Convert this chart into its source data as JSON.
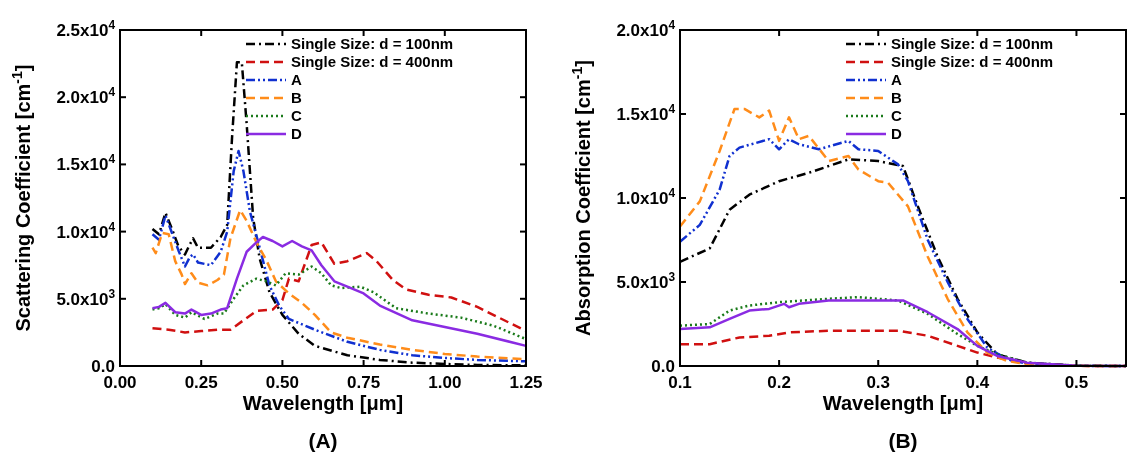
{
  "chart_data": [
    {
      "type": "line",
      "title": "(A)",
      "xlabel": "Wavelength [μm]",
      "ylabel": "Scattering Coefficient [cm$^{-1}$]",
      "legend": "top right",
      "xlim": [
        0,
        1.25
      ],
      "xticks": [
        {
          "value": 0,
          "label": "0.00"
        },
        {
          "value": 0.25,
          "label": "0.25"
        },
        {
          "value": 0.5,
          "label": "0.50"
        },
        {
          "value": 0.75,
          "label": "0.75"
        },
        {
          "value": 1,
          "label": "1.00"
        },
        {
          "value": 1.25,
          "label": "1.25"
        }
      ],
      "ylim": [
        0,
        25000
      ],
      "yticks": [
        {
          "value": 0,
          "label": "0.0"
        },
        {
          "value": 5000,
          "label": "5.0x10$^{3}$"
        },
        {
          "value": 10000,
          "label": "1.0x10$^{4}$"
        },
        {
          "value": 15000,
          "label": "1.5x10$^{4}$"
        },
        {
          "value": 20000,
          "label": "2.0x10$^{4}$"
        },
        {
          "value": 25000,
          "label": "2.5x10$^{4}$"
        }
      ],
      "series": [
        {
          "name": "Single Size: d = 100nm",
          "color": "#000000",
          "line_style": "dashdot",
          "x": [
            0.1,
            0.12,
            0.14,
            0.16,
            0.18,
            0.2,
            0.21,
            0.225,
            0.24,
            0.28,
            0.31,
            0.33,
            0.345,
            0.36,
            0.375,
            0.39,
            0.41,
            0.43,
            0.46,
            0.5,
            0.55,
            0.6,
            0.7,
            0.8,
            0.9,
            1.0,
            1.1,
            1.25
          ],
          "values": [
            10200,
            9800,
            11400,
            10200,
            8900,
            8300,
            8800,
            9500,
            8800,
            8800,
            9600,
            10500,
            17000,
            22600,
            22600,
            18000,
            11000,
            8000,
            5500,
            3800,
            2400,
            1500,
            800,
            450,
            250,
            150,
            80,
            50
          ]
        },
        {
          "name": "Single Size: d = 400nm",
          "color": "#d01010",
          "line_style": "dashed",
          "x": [
            0.1,
            0.15,
            0.2,
            0.25,
            0.3,
            0.34,
            0.38,
            0.42,
            0.47,
            0.5,
            0.52,
            0.55,
            0.59,
            0.62,
            0.66,
            0.7,
            0.76,
            0.79,
            0.84,
            0.88,
            0.95,
            1.02,
            1.1,
            1.25
          ],
          "values": [
            2800,
            2700,
            2500,
            2600,
            2700,
            2700,
            3400,
            4100,
            4200,
            4900,
            6500,
            6300,
            9000,
            9200,
            7600,
            7800,
            8400,
            7800,
            6400,
            5700,
            5300,
            5100,
            4400,
            2600
          ]
        },
        {
          "name": "A",
          "color": "#1030d0",
          "line_style": "dashdotdot",
          "x": [
            0.1,
            0.12,
            0.14,
            0.16,
            0.18,
            0.2,
            0.215,
            0.225,
            0.24,
            0.28,
            0.31,
            0.33,
            0.35,
            0.365,
            0.38,
            0.4,
            0.43,
            0.46,
            0.49,
            0.52,
            0.55,
            0.6,
            0.7,
            0.8,
            0.9,
            1.0,
            1.1,
            1.25
          ],
          "values": [
            9800,
            9400,
            11200,
            9900,
            8600,
            7400,
            8100,
            8300,
            7700,
            7500,
            8500,
            10000,
            14500,
            16000,
            14500,
            11500,
            8800,
            6000,
            4500,
            3500,
            3200,
            2700,
            1800,
            1200,
            800,
            600,
            450,
            350
          ]
        },
        {
          "name": "B",
          "color": "#ff8c1a",
          "line_style": "dashed",
          "x": [
            0.1,
            0.11,
            0.13,
            0.15,
            0.17,
            0.19,
            0.2,
            0.22,
            0.24,
            0.27,
            0.3,
            0.32,
            0.34,
            0.37,
            0.39,
            0.42,
            0.45,
            0.48,
            0.52,
            0.56,
            0.6,
            0.65,
            0.7,
            0.8,
            0.9,
            1.0,
            1.1,
            1.25
          ],
          "values": [
            8800,
            8400,
            9900,
            9800,
            7800,
            6800,
            6100,
            6900,
            6200,
            6000,
            6400,
            6800,
            9500,
            11600,
            10800,
            9200,
            7900,
            6300,
            5400,
            4700,
            3800,
            2500,
            2100,
            1600,
            1200,
            900,
            700,
            500
          ]
        },
        {
          "name": "C",
          "color": "#1a7a1a",
          "line_style": "dotted",
          "x": [
            0.1,
            0.12,
            0.14,
            0.17,
            0.2,
            0.22,
            0.26,
            0.3,
            0.32,
            0.35,
            0.38,
            0.42,
            0.45,
            0.48,
            0.51,
            0.55,
            0.59,
            0.62,
            0.65,
            0.68,
            0.74,
            0.78,
            0.85,
            0.95,
            1.05,
            1.15,
            1.25
          ],
          "values": [
            4200,
            4300,
            4600,
            3800,
            3600,
            4000,
            3500,
            3900,
            3900,
            5000,
            6000,
            6500,
            6300,
            6000,
            6900,
            6800,
            7400,
            6900,
            6000,
            5800,
            5900,
            5500,
            4300,
            3900,
            3600,
            3000,
            2000
          ]
        },
        {
          "name": "D",
          "color": "#8a2be2",
          "line_style": "solid",
          "x": [
            0.1,
            0.12,
            0.14,
            0.17,
            0.2,
            0.22,
            0.25,
            0.28,
            0.31,
            0.33,
            0.36,
            0.39,
            0.42,
            0.44,
            0.47,
            0.5,
            0.53,
            0.56,
            0.59,
            0.62,
            0.66,
            0.7,
            0.75,
            0.8,
            0.9,
            1.0,
            1.1,
            1.25
          ],
          "values": [
            4300,
            4400,
            4700,
            4000,
            3900,
            4200,
            3800,
            3900,
            4200,
            4300,
            6500,
            8500,
            9200,
            9600,
            9300,
            8900,
            9300,
            8900,
            8600,
            7500,
            6300,
            5900,
            5400,
            4500,
            3400,
            2900,
            2400,
            1500
          ]
        }
      ]
    },
    {
      "type": "line",
      "title": "(B)",
      "xlabel": "Wavelength [μm]",
      "ylabel": "Absorption Coefficient [cm$^{-1}$]",
      "legend": "top right",
      "xlim": [
        0.1,
        0.55
      ],
      "xticks": [
        0.1,
        0.2,
        0.3,
        0.4,
        0.5
      ],
      "ylim": [
        0,
        20000
      ],
      "yticks": [
        {
          "value": 0,
          "label": "0.0"
        },
        {
          "value": 5000,
          "label": "5.0x10$^{3}$"
        },
        {
          "value": 10000,
          "label": "1.0x10$^{4}$"
        },
        {
          "value": 15000,
          "label": "1.5x10$^{4}$"
        },
        {
          "value": 20000,
          "label": "2.0x10$^{4}$"
        }
      ],
      "series": [
        {
          "name": "Single Size: d = 100nm",
          "color": "#000000",
          "line_style": "dashdot",
          "x": [
            0.1,
            0.13,
            0.15,
            0.17,
            0.2,
            0.23,
            0.27,
            0.3,
            0.325,
            0.34,
            0.36,
            0.38,
            0.4,
            0.42,
            0.45,
            0.5,
            0.55
          ],
          "values": [
            6200,
            7000,
            9300,
            10200,
            11000,
            11500,
            12300,
            12200,
            11900,
            9500,
            6500,
            4000,
            2000,
            700,
            200,
            20,
            0
          ]
        },
        {
          "name": "Single Size: d = 400nm",
          "color": "#d01010",
          "line_style": "dashed",
          "x": [
            0.1,
            0.13,
            0.16,
            0.19,
            0.21,
            0.25,
            0.28,
            0.32,
            0.35,
            0.38,
            0.4,
            0.42,
            0.45,
            0.5,
            0.55
          ],
          "values": [
            1300,
            1300,
            1700,
            1800,
            2000,
            2100,
            2100,
            2100,
            1800,
            1200,
            800,
            500,
            150,
            10,
            0
          ]
        },
        {
          "name": "A",
          "color": "#1030d0",
          "line_style": "dashdotdot",
          "x": [
            0.1,
            0.12,
            0.14,
            0.15,
            0.16,
            0.19,
            0.2,
            0.21,
            0.22,
            0.24,
            0.27,
            0.28,
            0.3,
            0.32,
            0.33,
            0.35,
            0.37,
            0.39,
            0.41,
            0.43,
            0.45,
            0.5,
            0.55
          ],
          "values": [
            7400,
            8400,
            10500,
            12500,
            13000,
            13500,
            12900,
            13500,
            13200,
            12900,
            13400,
            12900,
            12800,
            12000,
            11000,
            7500,
            5000,
            2800,
            1100,
            400,
            150,
            10,
            0
          ]
        },
        {
          "name": "B",
          "color": "#ff8c1a",
          "line_style": "dashed",
          "x": [
            0.1,
            0.12,
            0.14,
            0.155,
            0.165,
            0.18,
            0.19,
            0.2,
            0.21,
            0.22,
            0.23,
            0.25,
            0.27,
            0.28,
            0.3,
            0.31,
            0.33,
            0.35,
            0.37,
            0.39,
            0.41,
            0.43,
            0.45,
            0.5,
            0.55
          ],
          "values": [
            8300,
            9800,
            12800,
            15300,
            15300,
            14800,
            15200,
            13400,
            14800,
            13500,
            13700,
            12200,
            12500,
            11700,
            11000,
            10900,
            9500,
            6500,
            4000,
            2000,
            800,
            300,
            100,
            10,
            0
          ]
        },
        {
          "name": "C",
          "color": "#1a7a1a",
          "line_style": "dotted",
          "x": [
            0.1,
            0.13,
            0.15,
            0.17,
            0.2,
            0.25,
            0.28,
            0.32,
            0.35,
            0.38,
            0.4,
            0.42,
            0.45,
            0.5,
            0.55
          ],
          "values": [
            2400,
            2500,
            3300,
            3600,
            3800,
            4000,
            4100,
            3900,
            3100,
            1900,
            1200,
            700,
            200,
            20,
            0
          ]
        },
        {
          "name": "D",
          "color": "#8a2be2",
          "line_style": "solid",
          "x": [
            0.1,
            0.13,
            0.15,
            0.17,
            0.19,
            0.205,
            0.21,
            0.22,
            0.25,
            0.28,
            0.3,
            0.325,
            0.35,
            0.38,
            0.4,
            0.42,
            0.45,
            0.5,
            0.55
          ],
          "values": [
            2200,
            2300,
            2800,
            3300,
            3400,
            3700,
            3500,
            3700,
            3900,
            3900,
            3900,
            3900,
            3200,
            2200,
            1200,
            600,
            200,
            20,
            0
          ]
        }
      ]
    }
  ]
}
